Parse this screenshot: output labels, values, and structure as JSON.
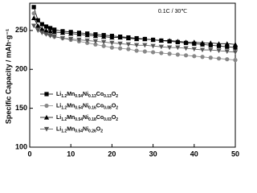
{
  "chart_data": {
    "type": "line",
    "y_label": "Specific Capacity / mAh·g⁻¹",
    "annotation": "0.1C / 30℃",
    "x": [
      1,
      2,
      3,
      4,
      5,
      6,
      8,
      10,
      12,
      14,
      16,
      18,
      20,
      22,
      24,
      26,
      28,
      30,
      32,
      34,
      36,
      38,
      40,
      42,
      44,
      46,
      48,
      50
    ],
    "xlim": [
      0,
      50
    ],
    "xticks": [
      0,
      10,
      20,
      30,
      40,
      50
    ],
    "ylim": [
      100,
      285
    ],
    "yticks": [
      100,
      150,
      200,
      250
    ],
    "series": [
      {
        "name": "Li1.2Mn0.54Ni0.13Co0.13O2",
        "color": "#000000",
        "marker": "square",
        "values": [
          280,
          263,
          258,
          255,
          253,
          251,
          249,
          248,
          247,
          246,
          245,
          244,
          243,
          242,
          241,
          240,
          239,
          238,
          237,
          236,
          235,
          234,
          233,
          232,
          231,
          230,
          229,
          228
        ]
      },
      {
        "name": "Li1.2Mn0.54Ni0.16Co0.08O2",
        "color": "#888888",
        "marker": "circle",
        "values": [
          272,
          255,
          249,
          246,
          244,
          242,
          240,
          238,
          236,
          234,
          232,
          230,
          228,
          227,
          226,
          224,
          223,
          222,
          221,
          220,
          219,
          218,
          217,
          216,
          215,
          214,
          213,
          212
        ]
      },
      {
        "name": "Li1.2Mn0.54Ni0.18Co0.03O2",
        "color": "#000000",
        "marker": "triangle-up",
        "values": [
          266,
          256,
          252,
          250,
          249,
          248,
          247,
          246,
          245,
          244,
          243,
          242,
          241,
          241,
          240,
          239,
          239,
          238,
          237,
          237,
          236,
          235,
          235,
          234,
          234,
          233,
          233,
          232
        ]
      },
      {
        "name": "Li1.2Mn0.54Ni0.26O2",
        "color": "#555555",
        "marker": "triangle-down",
        "values": [
          256,
          250,
          247,
          245,
          243,
          242,
          240,
          239,
          238,
          237,
          236,
          235,
          234,
          233,
          232,
          231,
          231,
          230,
          229,
          228,
          228,
          227,
          226,
          225,
          225,
          224,
          223,
          222
        ]
      }
    ]
  }
}
